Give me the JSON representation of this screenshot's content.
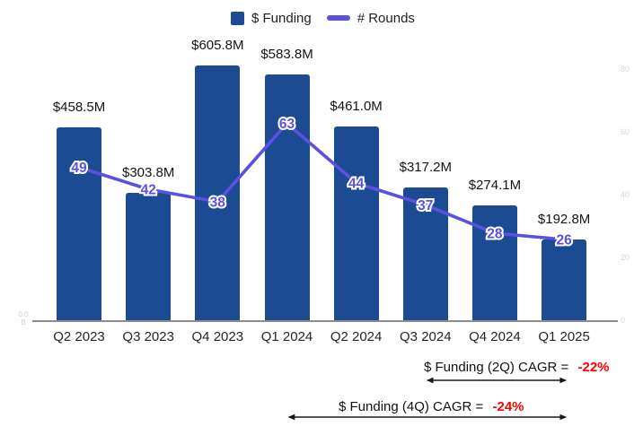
{
  "legend": {
    "funding_label": "$ Funding",
    "rounds_label": "# Rounds"
  },
  "colors": {
    "bar": "#1C4B94",
    "line": "#5B51E0",
    "cagr_value": "#FF0000",
    "axis_line": "#8C8C8C",
    "faint_ticks": "#D6D6D6",
    "arrow": "#1a1a1a"
  },
  "chart_data": {
    "type": "combo",
    "categories": [
      "Q2 2023",
      "Q3 2023",
      "Q4 2023",
      "Q1 2024",
      "Q2 2024",
      "Q3 2024",
      "Q4 2024",
      "Q1 2025"
    ],
    "series": [
      {
        "name": "$ Funding",
        "type": "bar",
        "axis": "left",
        "unit": "USD millions",
        "values": [
          458.5,
          303.8,
          605.8,
          583.8,
          461.0,
          317.2,
          274.1,
          192.8
        ],
        "labels": [
          "$458.5M",
          "$303.8M",
          "$605.8M",
          "$583.8M",
          "$461.0M",
          "$317.2M",
          "$274.1M",
          "$192.8M"
        ],
        "color": "#1C4B94"
      },
      {
        "name": "# Rounds",
        "type": "line",
        "axis": "right",
        "values": [
          49,
          42,
          38,
          63,
          44,
          37,
          28,
          26
        ],
        "labels": [
          "49",
          "42",
          "38",
          "63",
          "44",
          "37",
          "28",
          "26"
        ],
        "color": "#5B51E0"
      }
    ],
    "right_axis": {
      "ticks": [
        "80",
        "60",
        "40",
        "20",
        "0"
      ],
      "tick_values": [
        80,
        60,
        40,
        20,
        0
      ],
      "range": [
        0,
        80
      ]
    },
    "left_axis": {
      "faint_label_lines": [
        "0.0",
        "B"
      ]
    },
    "grid": false,
    "legend_position": "top-center"
  },
  "annotations": [
    {
      "prefix": "$ Funding (2Q) CAGR = ",
      "value": "-22%",
      "from": "Q3 2024",
      "to": "Q1 2025"
    },
    {
      "prefix": "$ Funding (4Q) CAGR = ",
      "value": "-24%",
      "from": "Q1 2024",
      "to": "Q1 2025"
    }
  ]
}
